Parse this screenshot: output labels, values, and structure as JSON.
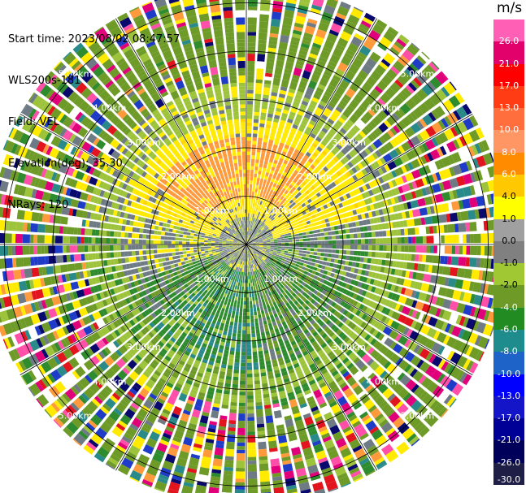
{
  "info": {
    "start_time": "Start time: 2023/08/02 08:47:57",
    "instrument": "WLS200s-181",
    "field": "Field: VEL",
    "elevation": "Elevation(deg): 35.30",
    "nrays": "NRays: 120"
  },
  "colorbar": {
    "unit": "m/s",
    "ticks": [
      "26.0",
      "21.0",
      "17.0",
      "13.0",
      "10.0",
      "8.0",
      "6.0",
      "4.0",
      "1.0",
      "0.0",
      "-1.0",
      "-2.0",
      "-4.0",
      "-6.0",
      "-8.0",
      "-10.0",
      "-13.0",
      "-17.0",
      "-21.0",
      "-26.0",
      "-30.0"
    ],
    "colors": [
      "#ff5fb4",
      "#e2006b",
      "#ff0000",
      "#ff3c14",
      "#ff6e3c",
      "#ff9664",
      "#ff8c00",
      "#ffc800",
      "#ffff00",
      "#a0a0a0",
      "#808080",
      "#a0c832",
      "#6e9b28",
      "#228b22",
      "#1e8c8c",
      "#1e64c8",
      "#0000ff",
      "#1414c8",
      "#000096",
      "#00005a",
      "#1e1e46"
    ]
  },
  "chart_data": {
    "type": "ppi-radar",
    "title": "Field: VEL",
    "nrays": 120,
    "range_rings_km": [
      1.0,
      2.0,
      3.0,
      4.0,
      5.0
    ],
    "ring_labels": [
      "1.00km",
      "2.00km",
      "3.00km",
      "4.00km",
      "5.00km"
    ],
    "max_range_km": 5.4,
    "spoke_step_deg": 30,
    "color_scale_units": "m/s",
    "color_scale_range": [
      -30.0,
      26.0
    ],
    "notes": "Near range: gray/green mixed; yellow/orange positive band north (~1-3 km); green negative band south; outer ranges noisy mixed colors."
  }
}
